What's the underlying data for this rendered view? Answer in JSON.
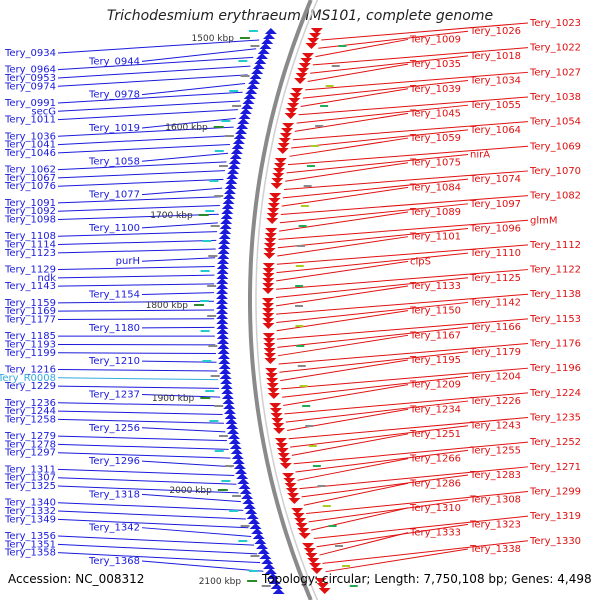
{
  "title": "Trichodesmium erythraeum IMS101, complete genome",
  "accession": "Accession: NC_008312",
  "summary": "Topology: circular; Length: 7,750,108 bp; Genes: 4,498",
  "colors": {
    "left_strand": "#1a1adc",
    "right_strand": "#e01010",
    "rna": "#33aadd",
    "backbone": "#8a8a8a",
    "tick": "#2a8a2a"
  },
  "scale_ticks": [
    {
      "label": "1500 kbp"
    },
    {
      "label": "1600 kbp"
    },
    {
      "label": "1700 kbp"
    },
    {
      "label": "1800 kbp"
    },
    {
      "label": "1900 kbp"
    },
    {
      "label": "2000 kbp"
    },
    {
      "label": "2100 kbp"
    }
  ],
  "left_labels": [
    "Tery_0934",
    "Tery_0944",
    "Tery_0964",
    "Tery_0953",
    "Tery_0974",
    "Tery_0978",
    "Tery_0991",
    "secG",
    "Tery_1011",
    "Tery_1019",
    "Tery_1036",
    "Tery_1041",
    "Tery_1046",
    "Tery_1058",
    "Tery_1062",
    "Tery_1067",
    "Tery_1076",
    "Tery_1077",
    "Tery_1091",
    "Tery_1092",
    "Tery_1098",
    "Tery_1100",
    "Tery_1108",
    "Tery_1114",
    "Tery_1123",
    "purH",
    "Tery_1129",
    "ndk",
    "Tery_1143",
    "Tery_1154",
    "Tery_1159",
    "Tery_1169",
    "Tery_1177",
    "Tery_1180",
    "Tery_1185",
    "Tery_1193",
    "Tery_1199",
    "Tery_1210",
    "Tery_1216",
    "Tery_R0008",
    "Tery_1229",
    "Tery_1237",
    "Tery_1236",
    "Tery_1244",
    "Tery_1258",
    "Tery_1256",
    "Tery_1279",
    "Tery_1278",
    "Tery_1297",
    "Tery_1296",
    "Tery_1311",
    "Tery_1307",
    "Tery_1325",
    "Tery_1318",
    "Tery_1340",
    "Tery_1332",
    "Tery_1349",
    "Tery_1342",
    "Tery_1356",
    "Tery_1351",
    "Tery_1358",
    "Tery_1368"
  ],
  "right_labels": [
    "Tery_1023",
    "Tery_1026",
    "Tery_1009",
    "Tery_1022",
    "Tery_1018",
    "Tery_1035",
    "Tery_1027",
    "Tery_1034",
    "Tery_1039",
    "Tery_1038",
    "Tery_1055",
    "Tery_1045",
    "Tery_1054",
    "Tery_1064",
    "Tery_1059",
    "Tery_1069",
    "nirA",
    "Tery_1075",
    "Tery_1070",
    "Tery_1074",
    "Tery_1084",
    "Tery_1082",
    "Tery_1097",
    "Tery_1089",
    "glmM",
    "Tery_1096",
    "Tery_1101",
    "Tery_1112",
    "Tery_1110",
    "clpS",
    "Tery_1122",
    "Tery_1125",
    "Tery_1133",
    "Tery_1138",
    "Tery_1142",
    "Tery_1150",
    "Tery_1153",
    "Tery_1166",
    "Tery_1167",
    "Tery_1176",
    "Tery_1179",
    "Tery_1195",
    "Tery_1196",
    "Tery_1204",
    "Tery_1209",
    "Tery_1224",
    "Tery_1226",
    "Tery_1234",
    "Tery_1235",
    "Tery_1243",
    "Tery_1251",
    "Tery_1252",
    "Tery_1255",
    "Tery_1266",
    "Tery_1271",
    "Tery_1283",
    "Tery_1286",
    "Tery_1299",
    "Tery_1308",
    "Tery_1310",
    "Tery_1319",
    "Tery_1323",
    "Tery_1333",
    "Tery_1330",
    "Tery_1338"
  ]
}
